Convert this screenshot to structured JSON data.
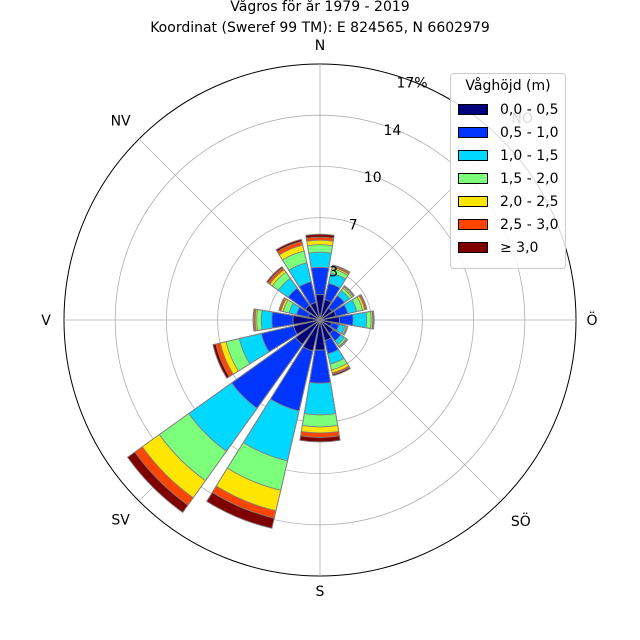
{
  "title": {
    "line1": "Vågros för år 1979 - 2019",
    "line2": "Koordinat (Sweref 99 TM): E 824565, N 6602979"
  },
  "chart_data": {
    "type": "windrose",
    "directions": [
      "N",
      "NO",
      "Ö",
      "SÖ",
      "S",
      "SV",
      "V",
      "NV"
    ],
    "radial_ticks": [
      "3",
      "7",
      "10",
      "14",
      "17%"
    ],
    "radial_tick_values": [
      3.4,
      6.8,
      10.2,
      13.6,
      17
    ],
    "rmax": 17,
    "sector_angles_deg": [
      0,
      22.5,
      45,
      67.5,
      90,
      112.5,
      135,
      157.5,
      180,
      202.5,
      225,
      247.5,
      270,
      292.5,
      315,
      337.5
    ],
    "legend_title": "Våghöjd (m)",
    "bins": [
      {
        "label": "0,0 - 0,5",
        "color": "#00007f"
      },
      {
        "label": "0,5 - 1,0",
        "color": "#0034ff"
      },
      {
        "label": "1,0 - 1,5",
        "color": "#00d8ff"
      },
      {
        "label": "1,5 - 2,0",
        "color": "#7cff7a"
      },
      {
        "label": "2,0 - 2,5",
        "color": "#ffe600"
      },
      {
        "label": "2,5 - 3,0",
        "color": "#ff4500"
      },
      {
        "label": "≥ 3,0",
        "color": "#7f0000"
      }
    ],
    "cumulative_by_sector": [
      [
        1.7,
        3.5,
        4.5,
        5.0,
        5.3,
        5.5,
        5.7
      ],
      [
        1.4,
        2.5,
        3.2,
        3.5,
        3.6,
        3.7,
        3.75
      ],
      [
        1.0,
        2.0,
        2.4,
        2.6,
        2.7,
        2.75,
        2.8
      ],
      [
        1.1,
        1.9,
        2.5,
        2.9,
        3.05,
        3.15,
        3.2
      ],
      [
        1.3,
        2.2,
        3.1,
        3.4,
        3.5,
        3.55,
        3.6
      ],
      [
        0.8,
        1.3,
        1.7,
        1.8,
        1.85,
        1.87,
        1.9
      ],
      [
        1.1,
        1.7,
        2.0,
        2.15,
        2.2,
        2.23,
        2.25
      ],
      [
        1.4,
        2.3,
        3.0,
        3.4,
        3.6,
        3.7,
        3.8
      ],
      [
        2.0,
        4.2,
        6.3,
        7.1,
        7.5,
        7.8,
        8.1
      ],
      [
        2.1,
        6.2,
        9.6,
        11.6,
        13.0,
        13.5,
        14.2
      ],
      [
        2.0,
        7.2,
        10.7,
        13.1,
        14.5,
        15.1,
        15.7
      ],
      [
        1.8,
        4.0,
        5.5,
        6.4,
        6.8,
        7.1,
        7.3
      ],
      [
        1.8,
        3.2,
        3.9,
        4.2,
        4.3,
        4.4,
        4.45
      ],
      [
        0.8,
        1.6,
        2.1,
        2.5,
        2.65,
        2.75,
        2.8
      ],
      [
        1.2,
        2.6,
        3.4,
        3.9,
        4.1,
        4.25,
        4.35
      ],
      [
        1.2,
        2.6,
        3.9,
        4.7,
        5.1,
        5.35,
        5.5
      ]
    ]
  }
}
